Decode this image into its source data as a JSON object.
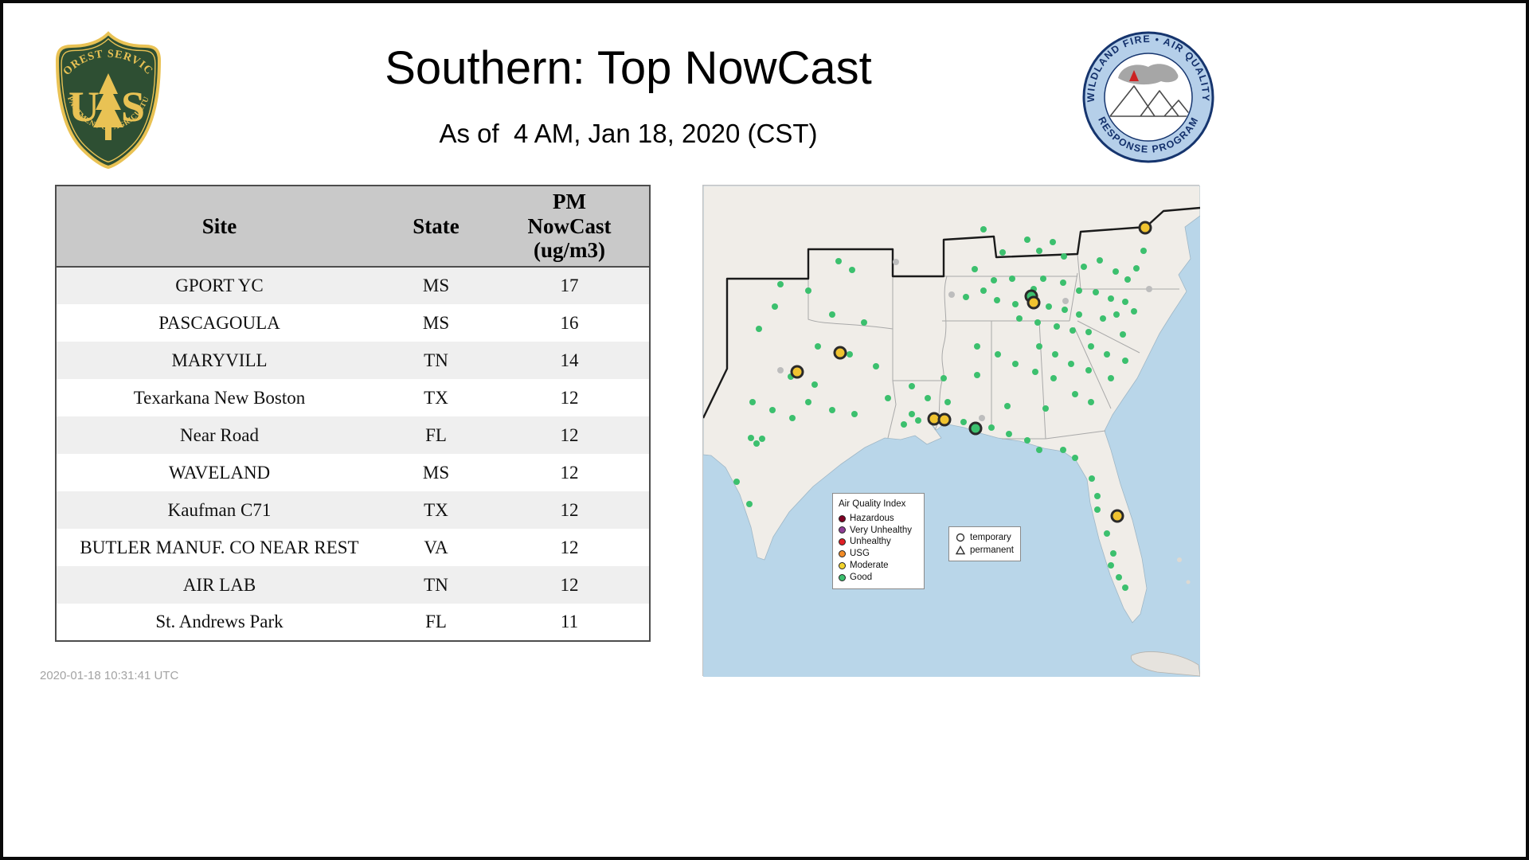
{
  "header": {
    "title": "Southern: Top NowCast",
    "subtitle": "As of  4 AM, Jan 18, 2020 (CST)"
  },
  "logos": {
    "forest_service": {
      "top_text": "FOREST SERVICE",
      "letter_u": "U",
      "letter_s": "S",
      "bottom_text": "DEPARTMENT OF AGRICULTURE"
    },
    "program": {
      "top_text": "WILDLAND FIRE • AIR QUALITY",
      "bottom_text": "RESPONSE PROGRAM"
    }
  },
  "chart_data": {
    "type": "table",
    "title": "Southern: Top NowCast",
    "columns": [
      "Site",
      "State",
      "PM NowCast (ug/m3)"
    ],
    "rows": [
      [
        "GPORT YC",
        "MS",
        "17"
      ],
      [
        "PASCAGOULA",
        "MS",
        "16"
      ],
      [
        "MARYVILL",
        "TN",
        "14"
      ],
      [
        "Texarkana New Boston",
        "TX",
        "12"
      ],
      [
        "Near Road",
        "FL",
        "12"
      ],
      [
        "WAVELAND",
        "MS",
        "12"
      ],
      [
        "Kaufman C71",
        "TX",
        "12"
      ],
      [
        "BUTLER MANUF. CO NEAR REST",
        "VA",
        "12"
      ],
      [
        "AIR LAB",
        "TN",
        "12"
      ],
      [
        "St. Andrews Park",
        "FL",
        "11"
      ]
    ]
  },
  "map": {
    "legend": {
      "title": "Air Quality Index",
      "items": [
        {
          "label": "Hazardous",
          "color": "#7e0023"
        },
        {
          "label": "Very Unhealthy",
          "color": "#8f3f97"
        },
        {
          "label": "Unhealthy",
          "color": "#e01f26"
        },
        {
          "label": "USG",
          "color": "#f28c28"
        },
        {
          "label": "Moderate",
          "color": "#f2d32c"
        },
        {
          "label": "Good",
          "color": "#3cc06e"
        }
      ]
    },
    "shape_legend": {
      "temporary": "temporary",
      "permanent": "permanent"
    },
    "marker_colors": {
      "good": "#3cc06e",
      "inactive": "#bdbdbd",
      "moderate": "#f0c330"
    },
    "markers": {
      "good": [
        [
          352,
          55
        ],
        [
          376,
          84
        ],
        [
          407,
          68
        ],
        [
          422,
          82
        ],
        [
          439,
          71
        ],
        [
          453,
          89
        ],
        [
          478,
          102
        ],
        [
          498,
          94
        ],
        [
          518,
          108
        ],
        [
          533,
          118
        ],
        [
          544,
          104
        ],
        [
          553,
          82
        ],
        [
          559,
          55
        ],
        [
          541,
          158
        ],
        [
          519,
          162
        ],
        [
          502,
          167
        ],
        [
          530,
          146
        ],
        [
          512,
          142
        ],
        [
          493,
          134
        ],
        [
          341,
          105
        ],
        [
          365,
          119
        ],
        [
          388,
          117
        ],
        [
          427,
          117
        ],
        [
          452,
          122
        ],
        [
          472,
          132
        ],
        [
          330,
          140
        ],
        [
          352,
          132
        ],
        [
          369,
          144
        ],
        [
          392,
          149
        ],
        [
          415,
          130
        ],
        [
          434,
          152
        ],
        [
          454,
          156
        ],
        [
          472,
          162
        ],
        [
          397,
          167
        ],
        [
          420,
          172
        ],
        [
          444,
          177
        ],
        [
          464,
          182
        ],
        [
          484,
          184
        ],
        [
          527,
          187
        ],
        [
          487,
          202
        ],
        [
          507,
          212
        ],
        [
          530,
          220
        ],
        [
          422,
          202
        ],
        [
          442,
          212
        ],
        [
          462,
          224
        ],
        [
          484,
          232
        ],
        [
          512,
          242
        ],
        [
          344,
          202
        ],
        [
          370,
          212
        ],
        [
          392,
          224
        ],
        [
          417,
          234
        ],
        [
          440,
          242
        ],
        [
          344,
          238
        ],
        [
          467,
          262
        ],
        [
          487,
          272
        ],
        [
          430,
          280
        ],
        [
          382,
          277
        ],
        [
          302,
          242
        ],
        [
          262,
          252
        ],
        [
          282,
          267
        ],
        [
          307,
          272
        ],
        [
          327,
          297
        ],
        [
          362,
          304
        ],
        [
          384,
          312
        ],
        [
          262,
          287
        ],
        [
          270,
          295
        ],
        [
          252,
          300
        ],
        [
          407,
          320
        ],
        [
          422,
          332
        ],
        [
          452,
          332
        ],
        [
          467,
          342
        ],
        [
          488,
          368
        ],
        [
          495,
          390
        ],
        [
          495,
          407
        ],
        [
          515,
          462
        ],
        [
          512,
          477
        ],
        [
          522,
          492
        ],
        [
          530,
          505
        ],
        [
          507,
          437
        ],
        [
          170,
          95
        ],
        [
          187,
          106
        ],
        [
          97,
          124
        ],
        [
          132,
          132
        ],
        [
          70,
          180
        ],
        [
          90,
          152
        ],
        [
          162,
          162
        ],
        [
          202,
          172
        ],
        [
          144,
          202
        ],
        [
          184,
          212
        ],
        [
          217,
          227
        ],
        [
          62,
          272
        ],
        [
          87,
          282
        ],
        [
          112,
          292
        ],
        [
          132,
          272
        ],
        [
          162,
          282
        ],
        [
          190,
          287
        ],
        [
          60,
          317
        ],
        [
          67,
          324
        ],
        [
          74,
          318
        ],
        [
          42,
          372
        ],
        [
          58,
          400
        ],
        [
          232,
          267
        ],
        [
          110,
          240
        ],
        [
          140,
          250
        ]
      ],
      "inactive": [
        [
          97,
          232
        ],
        [
          312,
          137
        ],
        [
          242,
          96
        ],
        [
          455,
          145
        ],
        [
          350,
          292
        ],
        [
          560,
          130
        ]
      ],
      "good_sites": [
        [
          412,
          139
        ],
        [
          342,
          305
        ]
      ],
      "moderate_sites": [
        [
          555,
          53
        ],
        [
          415,
          147
        ],
        [
          172,
          210
        ],
        [
          118,
          234
        ],
        [
          290,
          293
        ],
        [
          303,
          294
        ],
        [
          520,
          415
        ]
      ]
    }
  },
  "footer": {
    "generated": "2020-01-18 10:31:41 UTC"
  }
}
